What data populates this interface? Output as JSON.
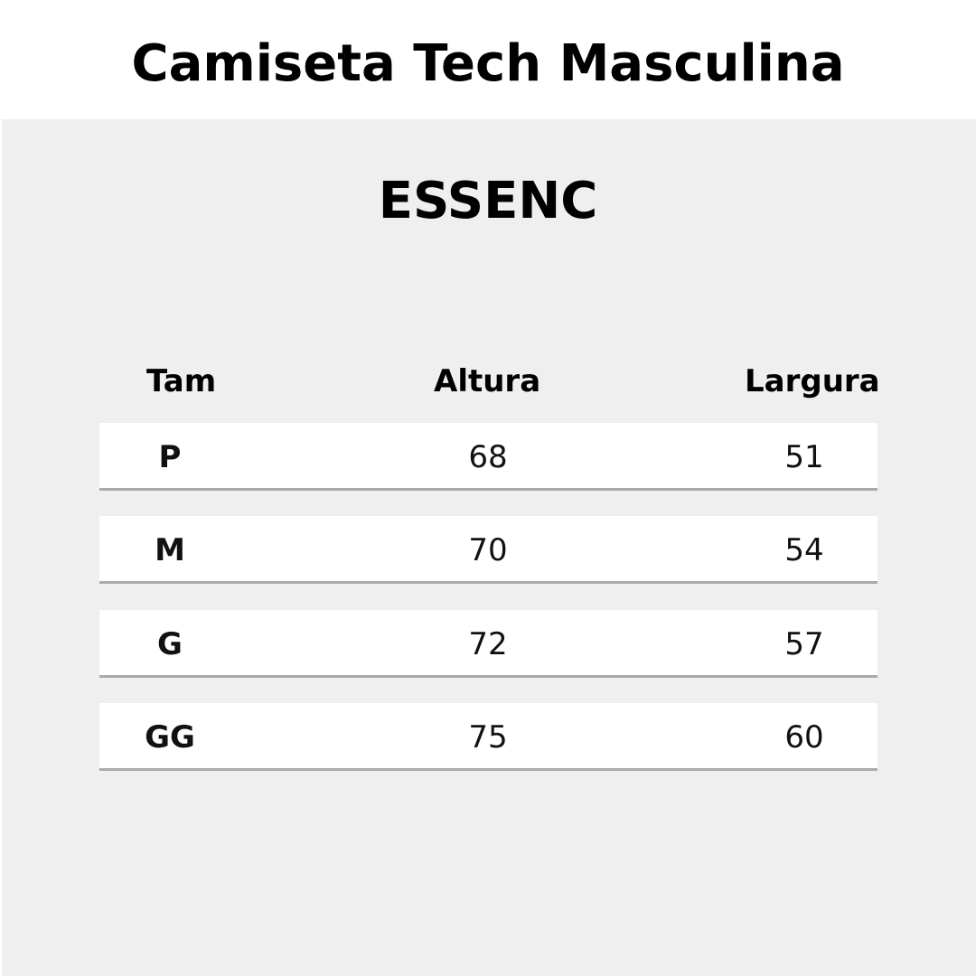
{
  "title": "Camiseta Tech Masculina",
  "brand": "ESSENC",
  "headers": {
    "size": "Tam",
    "height": "Altura",
    "width": "Largura"
  },
  "rows": [
    {
      "size": "P",
      "height": "68",
      "width": "51"
    },
    {
      "size": "M",
      "height": "70",
      "width": "54"
    },
    {
      "size": "G",
      "height": "72",
      "width": "57"
    },
    {
      "size": "GG",
      "height": "75",
      "width": "60"
    }
  ]
}
